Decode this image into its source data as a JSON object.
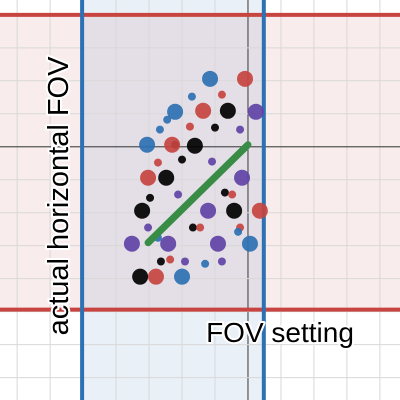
{
  "chart_data": {
    "type": "scatter",
    "x_label": "FOV setting",
    "y_label": "actual horizontal FOV",
    "xlim": [
      -7.52,
      4.61
    ],
    "ylim": [
      -7.68,
      4.45
    ],
    "xticks": [
      -7,
      -6,
      -5,
      -4,
      -3,
      -2,
      -1,
      0,
      1,
      2,
      3,
      4
    ],
    "yticks": [
      -7,
      -6,
      -5,
      -4,
      -3,
      -2,
      -1,
      0,
      1,
      2,
      3,
      4
    ],
    "grid": true,
    "hlines": [
      {
        "y": 4.0,
        "color": "#c74440"
      },
      {
        "y": -4.94,
        "color": "#c74440"
      }
    ],
    "vlines": [
      {
        "x": -5.03,
        "color": "#2d70b3"
      },
      {
        "x": 0.48,
        "color": "#2d70b3"
      }
    ],
    "segment": {
      "x": [
        -3.03,
        0
      ],
      "y": [
        -2.91,
        0.06
      ],
      "color": "#388c46"
    },
    "series": [
      {
        "color": "#000000",
        "size": "large",
        "x": [
          -3.27,
          -3.21,
          -2.48,
          -1.61,
          -0.61,
          -0.42
        ],
        "y": [
          -3.94,
          -1.94,
          -0.94,
          0.03,
          1.09,
          -1.94
        ]
      },
      {
        "color": "#000000",
        "size": "small",
        "x": [
          -2.97,
          -2.0,
          -1.0,
          -2.64,
          -1.67,
          -0.7,
          -2.21
        ],
        "y": [
          -1.55,
          -0.39,
          0.58,
          -3.48,
          -2.45,
          -1.39,
          0.06
        ]
      },
      {
        "color": "#c74440",
        "size": "large",
        "x": [
          -2.79,
          -3.03,
          -2.3,
          -1.36,
          -0.09,
          0.36
        ],
        "y": [
          -3.94,
          -0.94,
          0.06,
          1.09,
          2.06,
          -1.94
        ]
      },
      {
        "color": "#c74440",
        "size": "small",
        "x": [
          -2.36,
          -1.45,
          -0.48,
          -2.73,
          -1.76,
          -0.79,
          -0.24
        ],
        "y": [
          -3.42,
          -2.45,
          -1.45,
          -0.48,
          0.61,
          1.58,
          -2.45
        ]
      },
      {
        "color": "#6042a6",
        "size": "large",
        "x": [
          -3.52,
          -2.42,
          -1.21,
          -0.18,
          0.24,
          -0.91
        ],
        "y": [
          -2.94,
          -2.94,
          -1.94,
          -0.94,
          1.06,
          -2.94
        ]
      },
      {
        "color": "#6042a6",
        "size": "small",
        "x": [
          -3.03,
          -2.12,
          -1.09,
          -0.24,
          -1.91,
          -0.79
        ],
        "y": [
          -2.45,
          -1.45,
          -0.45,
          0.52,
          -3.48,
          -3.48
        ]
      },
      {
        "color": "#2d70b3",
        "size": "large",
        "x": [
          -2.0,
          -3.06,
          -2.21,
          -1.15,
          0.06
        ],
        "y": [
          -3.94,
          0.06,
          1.06,
          2.06,
          -2.94
        ]
      },
      {
        "color": "#2d70b3",
        "size": "small",
        "x": [
          -2.67,
          -2.45,
          -1.7,
          -1.3,
          -0.3,
          -2.73
        ],
        "y": [
          0.52,
          0.82,
          1.52,
          -3.55,
          -2.58,
          -2.76
        ]
      }
    ]
  }
}
